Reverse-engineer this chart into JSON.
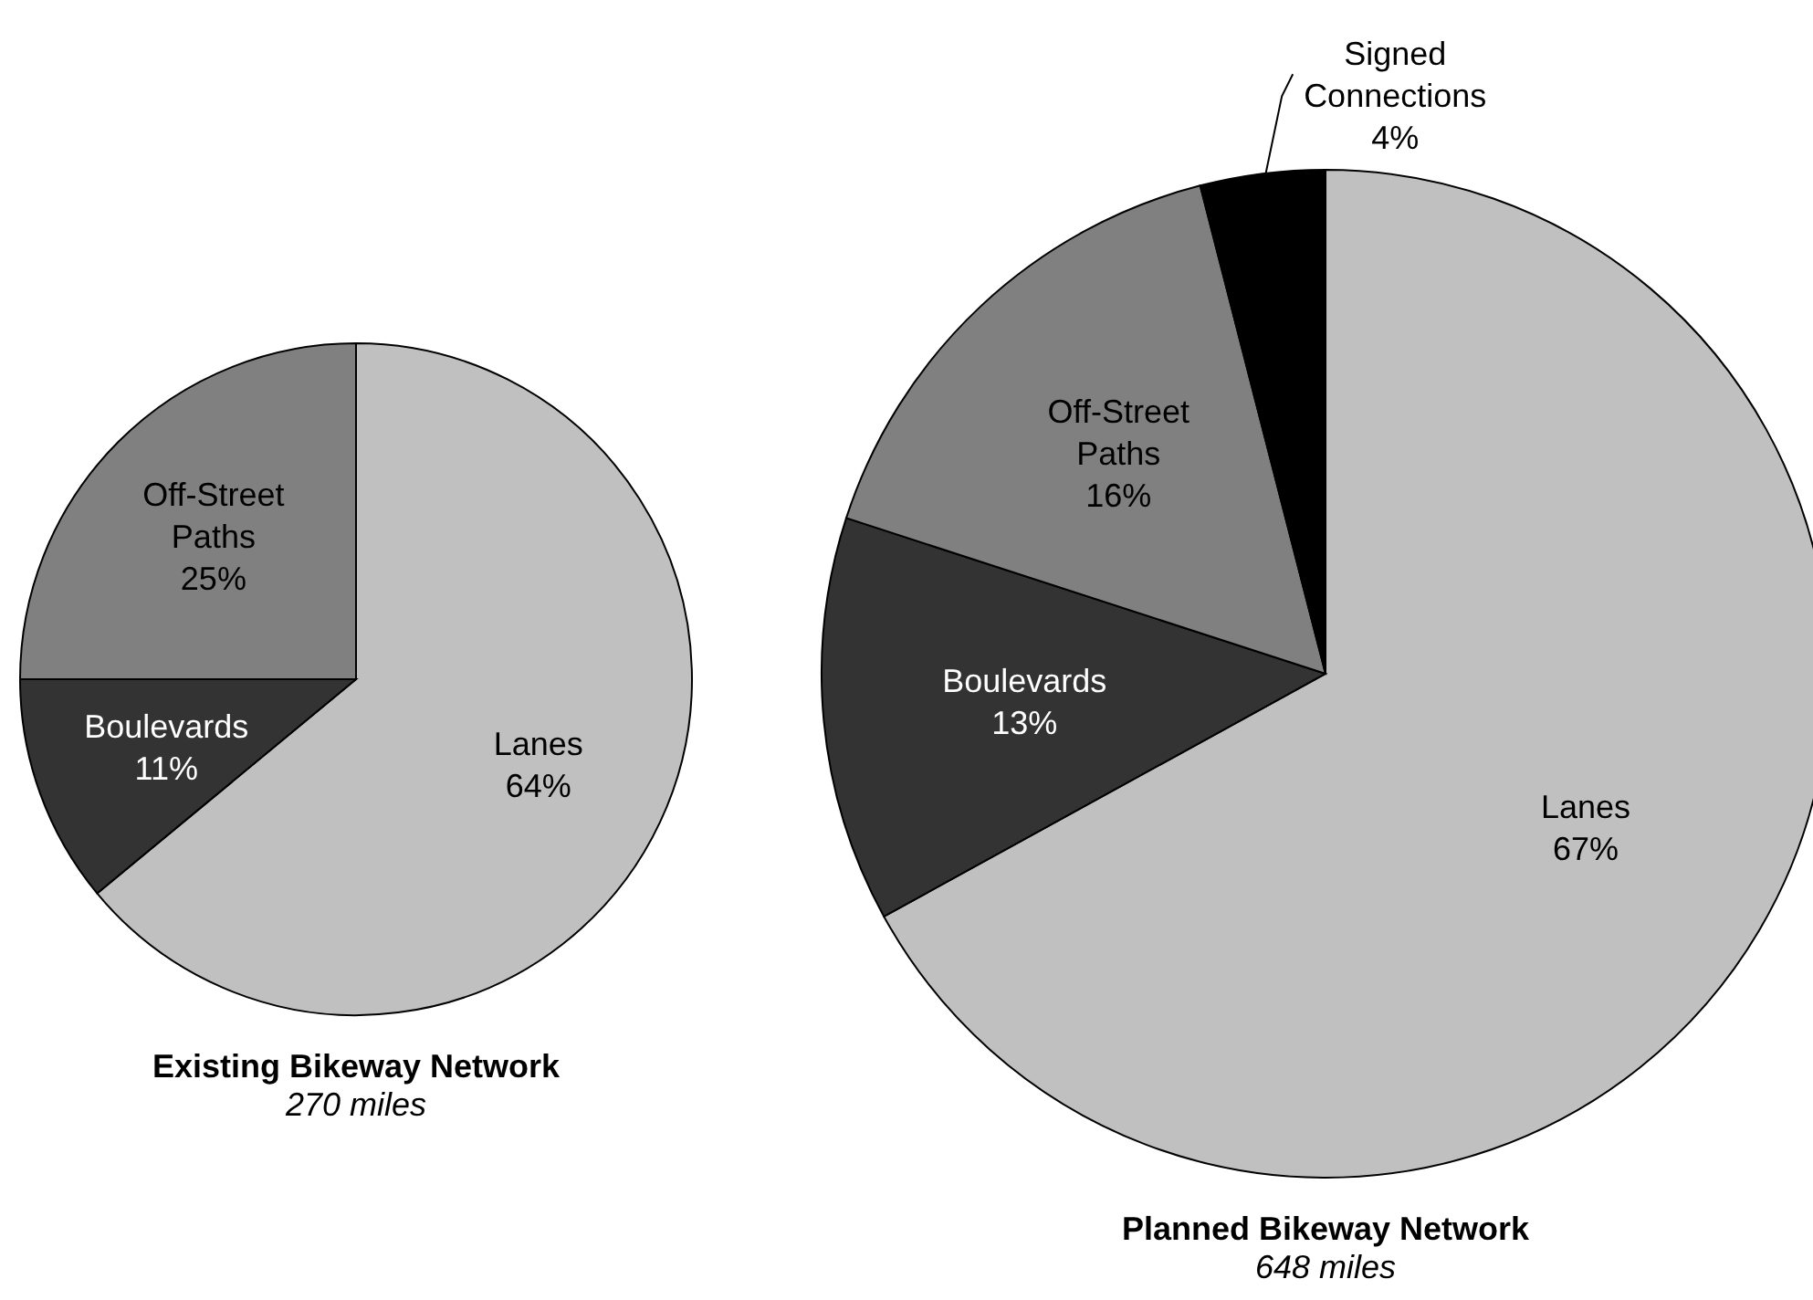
{
  "chart_data": [
    {
      "type": "pie",
      "title": "Existing Bikeway Network",
      "subtitle": "270 miles",
      "categories": [
        "Lanes",
        "Boulevards",
        "Off-Street Paths"
      ],
      "values": [
        64,
        11,
        25
      ],
      "colors": [
        "#c0c0c0",
        "#333333",
        "#808080"
      ],
      "value_labels": [
        "64%",
        "11%",
        "25%"
      ]
    },
    {
      "type": "pie",
      "title": "Planned Bikeway Network",
      "subtitle": "648 miles",
      "categories": [
        "Lanes",
        "Boulevards",
        "Off-Street Paths",
        "Signed Connections"
      ],
      "values": [
        67,
        13,
        16,
        4
      ],
      "colors": [
        "#c0c0c0",
        "#333333",
        "#808080",
        "#000000"
      ],
      "value_labels": [
        "67%",
        "13%",
        "16%",
        "4%"
      ]
    }
  ]
}
